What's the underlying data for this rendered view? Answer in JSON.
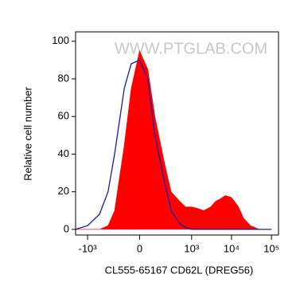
{
  "chart_data": {
    "type": "histogram-overlay",
    "watermark": "WWW.PTGLAB.COM",
    "xlabel": "CL555-65167 CD62L (DREG56)",
    "ylabel": "Relative cell number",
    "xscale": "asinh",
    "xlim": [
      -2000,
      150000
    ],
    "xticks": [
      {
        "value": -1000,
        "label": "-10³"
      },
      0,
      {
        "value": 1000,
        "label": "10³"
      },
      {
        "value": 10000,
        "label": "10⁴"
      },
      {
        "value": 100000,
        "label": "10⁵"
      }
    ],
    "ylim": [
      -3,
      105
    ],
    "yticks": [
      0,
      20,
      40,
      60,
      80,
      100
    ],
    "x": [
      -2000,
      -1000,
      -500,
      -300,
      -200,
      -100,
      -50,
      0,
      50,
      100,
      200,
      300,
      500,
      700,
      1000,
      1500,
      2000,
      3000,
      4000,
      5000,
      7000,
      10000,
      15000,
      20000,
      30000,
      50000,
      100000
    ],
    "series": [
      {
        "color": "#ff0000",
        "fill": true,
        "values": [
          0,
          0,
          0,
          2,
          10,
          45,
          75,
          95,
          85,
          60,
          35,
          20,
          15,
          12,
          12,
          11,
          10,
          12,
          15,
          16,
          18,
          17,
          12,
          6,
          2,
          0,
          0
        ]
      },
      {
        "color": "#1a1aa6",
        "fill": false,
        "values": [
          0,
          2,
          8,
          20,
          40,
          75,
          88,
          90,
          80,
          50,
          25,
          10,
          3,
          1,
          0,
          0,
          0,
          0,
          0,
          0,
          0,
          0,
          0,
          0,
          0,
          0,
          0
        ]
      }
    ]
  }
}
